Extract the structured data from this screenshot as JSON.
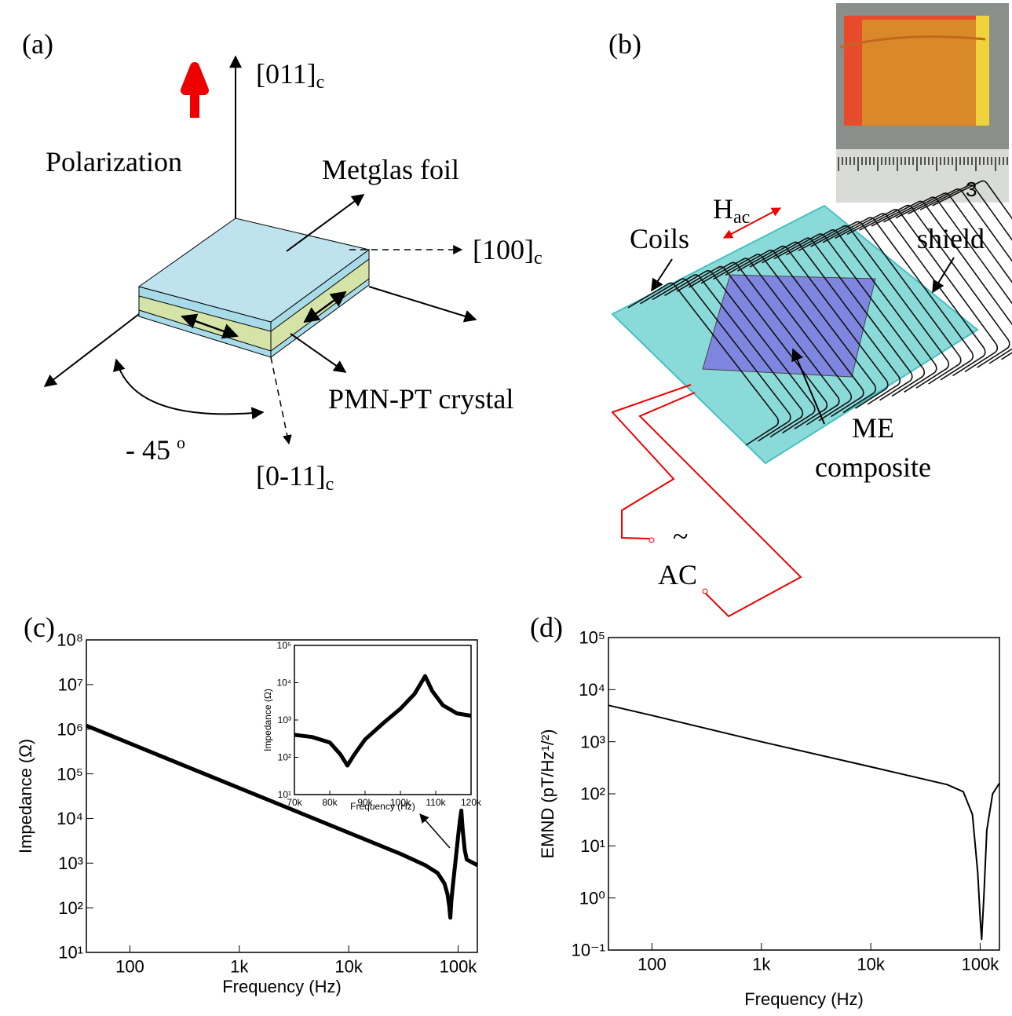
{
  "diagram_a": {
    "label": "(a)",
    "polarization": "Polarization",
    "axis_up": "[011]",
    "axis_up_sub": "c",
    "axis_right": "[100]",
    "axis_right_sub": "c",
    "axis_down": "[0-11]",
    "axis_down_sub": "c",
    "metglas": "Metglas foil",
    "crystal": "PMN-PT crystal",
    "angle": "- 45",
    "angle_sup": "o"
  },
  "diagram_b": {
    "label": "(b)",
    "field": "H",
    "field_sub": "ac",
    "coils": "Coils",
    "shield": "shield",
    "composite": [
      "ME",
      "composite"
    ],
    "tilde": "~",
    "source": "AC",
    "ruler_digit": "3"
  },
  "chart_data": [
    {
      "type": "line",
      "panel_label": "(c)",
      "x_label": "Frequency (Hz)",
      "y_label": "Impedance (Ω)",
      "log_x": true,
      "log_y": true,
      "color": "#000000",
      "x": [
        40,
        100,
        300,
        1000,
        3000,
        10000,
        30000,
        50000,
        65000,
        75000,
        80000,
        83000,
        85000,
        87000,
        90000,
        95000,
        100000,
        104000,
        107000,
        110000,
        115000,
        120000,
        150000
      ],
      "values": [
        1200000,
        480000,
        160000,
        48000,
        16000,
        4800,
        1600,
        900,
        600,
        350,
        200,
        110,
        60,
        150,
        350,
        1200,
        4000,
        9000,
        15000,
        6000,
        2000,
        1200,
        900
      ],
      "xlim": [
        40,
        150000
      ],
      "ylim": [
        10,
        100000000
      ],
      "xticks": [
        100,
        {
          "value": 1000,
          "label": "1k"
        },
        {
          "value": 10000,
          "label": "10k"
        },
        {
          "value": 100000,
          "label": "100k"
        }
      ],
      "yticks": [
        {
          "value": 10,
          "label": "10¹"
        },
        {
          "value": 100,
          "label": "10²"
        },
        {
          "value": 1000,
          "label": "10³"
        },
        {
          "value": 10000,
          "label": "10⁴"
        },
        {
          "value": 100000,
          "label": "10⁵"
        },
        {
          "value": 1000000,
          "label": "10⁶"
        },
        {
          "value": 10000000,
          "label": "10⁷"
        },
        {
          "value": 100000000,
          "label": "10⁸"
        }
      ]
    },
    {
      "type": "line",
      "x_label": "Frequency (Hz)",
      "y_label": "Impedance (Ω)",
      "log_x": false,
      "log_y": true,
      "color": "#000000",
      "x": [
        70000,
        75000,
        80000,
        83000,
        85000,
        87000,
        90000,
        95000,
        100000,
        104000,
        107000,
        109000,
        112000,
        116000,
        120000
      ],
      "values": [
        400,
        350,
        250,
        120,
        60,
        120,
        300,
        800,
        2000,
        5000,
        15000,
        6000,
        2500,
        1500,
        1300
      ],
      "xlim": [
        70000,
        120000
      ],
      "ylim": [
        10,
        100000
      ],
      "xticks": [
        {
          "value": 70000,
          "label": "70k"
        },
        {
          "value": 80000,
          "label": "80k"
        },
        {
          "value": 90000,
          "label": "90k"
        },
        {
          "value": 100000,
          "label": "100k"
        },
        {
          "value": 110000,
          "label": "110k"
        },
        {
          "value": 120000,
          "label": "120k"
        }
      ],
      "yticks": [
        {
          "value": 10,
          "label": "10¹"
        },
        {
          "value": 100,
          "label": "10²"
        },
        {
          "value": 1000,
          "label": "10³"
        },
        {
          "value": 10000,
          "label": "10⁴"
        },
        {
          "value": 100000,
          "label": "10⁵"
        }
      ]
    },
    {
      "type": "line",
      "panel_label": "(d)",
      "x_label": "Frequency (Hz)",
      "y_label": "EMND (pT/Hz¹/²)",
      "log_x": true,
      "log_y": true,
      "color": "#000000",
      "x": [
        40,
        100,
        1000,
        10000,
        50000,
        70000,
        85000,
        95000,
        100000,
        103000,
        108000,
        115000,
        130000,
        150000
      ],
      "values": [
        5000,
        3200,
        1000,
        330,
        150,
        110,
        40,
        3,
        0.4,
        0.16,
        1,
        20,
        100,
        160
      ],
      "xlim": [
        40,
        150000
      ],
      "ylim": [
        0.1,
        100000
      ],
      "xticks": [
        100,
        {
          "value": 1000,
          "label": "1k"
        },
        {
          "value": 10000,
          "label": "10k"
        },
        {
          "value": 100000,
          "label": "100k"
        }
      ],
      "yticks": [
        {
          "value": 0.1,
          "label": "10⁻¹"
        },
        {
          "value": 1,
          "label": "10⁰"
        },
        {
          "value": 10,
          "label": "10¹"
        },
        {
          "value": 100,
          "label": "10²"
        },
        {
          "value": 1000,
          "label": "10³"
        },
        {
          "value": 10000,
          "label": "10⁴"
        },
        {
          "value": 100000,
          "label": "10⁵"
        }
      ]
    }
  ]
}
